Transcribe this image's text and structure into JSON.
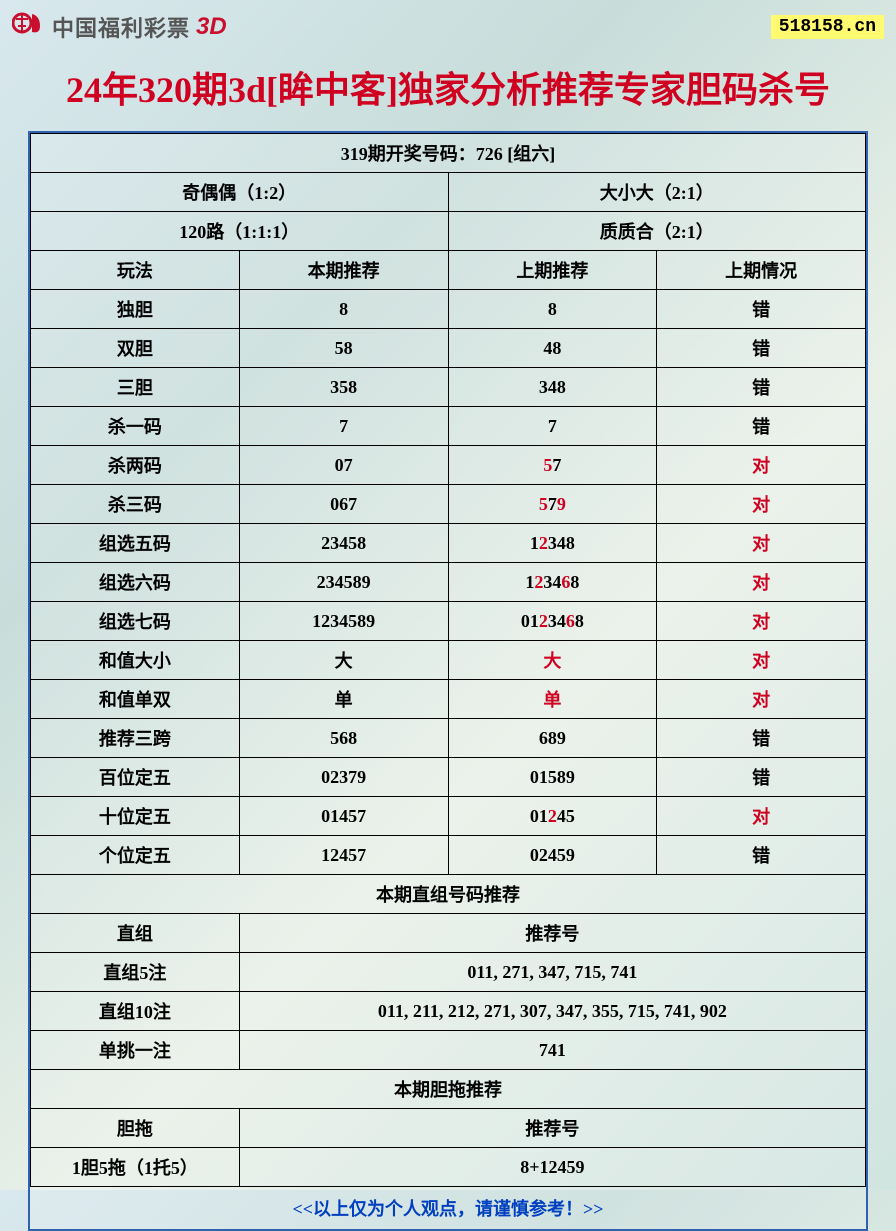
{
  "header": {
    "logo_text": "中国福利彩票",
    "logo_3d": "3D",
    "website": "518158.cn"
  },
  "title": "24年320期3d[眸中客]独家分析推荐专家胆码杀号",
  "draw_result": "319期开奖号码：726 [组六]",
  "attrs": {
    "odd_even": "奇偶偶（1:2）",
    "big_small": "大小大（2:1）",
    "route": "120路（1:1:1）",
    "prime": "质质合（2:1）"
  },
  "cols": {
    "c1": "玩法",
    "c2": "本期推荐",
    "c3": "上期推荐",
    "c4": "上期情况"
  },
  "rows": [
    {
      "name": "独胆",
      "cur": "8",
      "prev": "8",
      "hl": [],
      "res": "错",
      "res_red": false
    },
    {
      "name": "双胆",
      "cur": "58",
      "prev": "48",
      "hl": [],
      "res": "错",
      "res_red": false
    },
    {
      "name": "三胆",
      "cur": "358",
      "prev": "348",
      "hl": [],
      "res": "错",
      "res_red": false
    },
    {
      "name": "杀一码",
      "cur": "7",
      "prev": "7",
      "hl": [],
      "res": "错",
      "res_red": false
    },
    {
      "name": "杀两码",
      "cur": "07",
      "prev": "57",
      "hl": [
        0
      ],
      "res": "对",
      "res_red": true
    },
    {
      "name": "杀三码",
      "cur": "067",
      "prev": "579",
      "hl": [
        0,
        2
      ],
      "res": "对",
      "res_red": true
    },
    {
      "name": "组选五码",
      "cur": "23458",
      "prev": "12348",
      "hl": [
        1
      ],
      "res": "对",
      "res_red": true
    },
    {
      "name": "组选六码",
      "cur": "234589",
      "prev": "123468",
      "hl": [
        1,
        4
      ],
      "res": "对",
      "res_red": true
    },
    {
      "name": "组选七码",
      "cur": "1234589",
      "prev": "0123468",
      "hl": [
        2,
        5
      ],
      "res": "对",
      "res_red": true
    },
    {
      "name": "和值大小",
      "cur": "大",
      "prev": "大",
      "hl": [
        0
      ],
      "res": "对",
      "res_red": true
    },
    {
      "name": "和值单双",
      "cur": "单",
      "prev": "单",
      "hl": [
        0
      ],
      "res": "对",
      "res_red": true
    },
    {
      "name": "推荐三跨",
      "cur": "568",
      "prev": "689",
      "hl": [],
      "res": "错",
      "res_red": false
    },
    {
      "name": "百位定五",
      "cur": "02379",
      "prev": "01589",
      "hl": [],
      "res": "错",
      "res_red": false
    },
    {
      "name": "十位定五",
      "cur": "01457",
      "prev": "01245",
      "hl": [
        2
      ],
      "res": "对",
      "res_red": true
    },
    {
      "name": "个位定五",
      "cur": "12457",
      "prev": "02459",
      "hl": [],
      "res": "错",
      "res_red": false
    }
  ],
  "sections": {
    "direct_group_title": "本期直组号码推荐",
    "direct_group_header_left": "直组",
    "direct_group_header_right": "推荐号",
    "direct5_label": "直组5注",
    "direct5_val": "011, 271, 347, 715, 741",
    "direct10_label": "直组10注",
    "direct10_val": "011, 211, 212, 271, 307, 347, 355, 715, 741, 902",
    "single_label": "单挑一注",
    "single_val": "741",
    "dantuo_title": "本期胆拖推荐",
    "dantuo_header_left": "胆拖",
    "dantuo_header_right": "推荐号",
    "dantuo_row_label": "1胆5拖（1托5）",
    "dantuo_row_val": "8+12459"
  },
  "footer": "<<以上仅为个人观点，请谨慎参考！>>",
  "colors": {
    "title_red": "#d00020",
    "border_blue": "#3060b0",
    "cell_border": "#000000",
    "footer_blue": "#0040c0",
    "badge_bg": "#fffa70"
  }
}
